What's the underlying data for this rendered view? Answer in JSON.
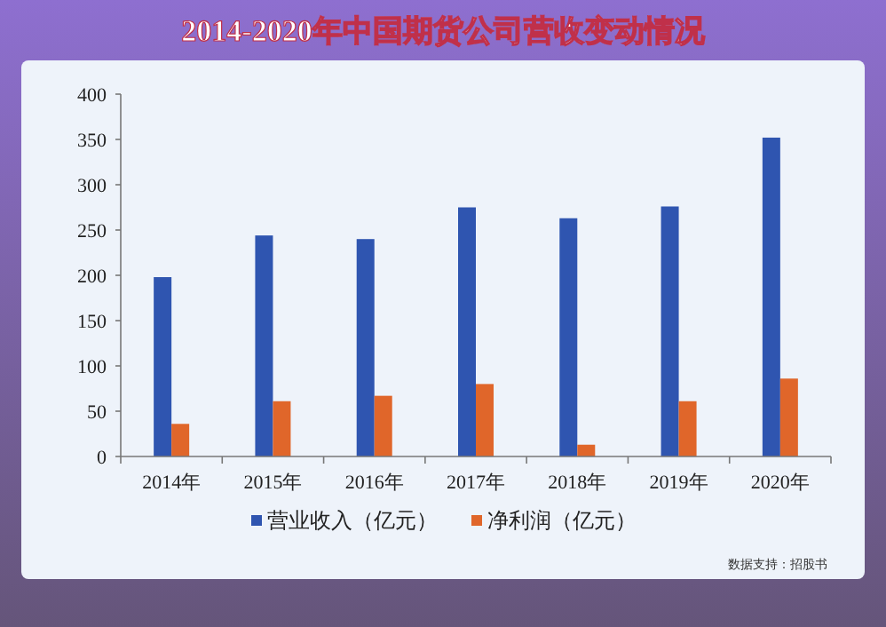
{
  "chart_data": {
    "type": "bar",
    "title": "2014-2020年中国期货公司营收变动情况",
    "categories": [
      "2014年",
      "2015年",
      "2016年",
      "2017年",
      "2018年",
      "2019年",
      "2020年"
    ],
    "series": [
      {
        "name": "营业收入（亿元）",
        "color": "#2f55b0",
        "values": [
          198,
          244,
          240,
          275,
          263,
          276,
          352
        ]
      },
      {
        "name": "净利润（亿元）",
        "color": "#e0662a",
        "values": [
          36,
          61,
          67,
          80,
          13,
          61,
          86
        ]
      }
    ],
    "ylim": [
      0,
      400
    ],
    "yticks": [
      0,
      50,
      100,
      150,
      200,
      250,
      300,
      350,
      400
    ],
    "grid": false,
    "legend": "bottom",
    "annotations": [
      "数据支持：招股书"
    ]
  }
}
